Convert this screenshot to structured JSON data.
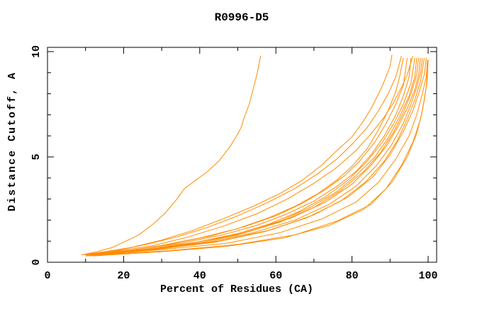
{
  "window": {
    "background": "#ffffff"
  },
  "chart_data": {
    "type": "line",
    "title": "R0996-D5",
    "xlabel": "Percent of Residues (CA)",
    "ylabel": "Distance Cutoff, A",
    "xlim": [
      0,
      102
    ],
    "ylim": [
      0,
      10.2
    ],
    "grid": false,
    "legend_position": "none",
    "series_color": "#ff8c00",
    "axis_color": "#000000",
    "xticks": {
      "major": [
        0,
        20,
        40,
        60,
        80,
        100
      ],
      "minor": [
        10,
        30,
        50,
        70,
        90
      ]
    },
    "yticks": {
      "major": [
        0,
        5,
        10
      ],
      "minor": [
        1,
        2,
        3,
        4,
        6,
        7,
        8,
        9
      ]
    },
    "series": [
      {
        "name": "curve-01",
        "points": [
          [
            9,
            0.35
          ],
          [
            13,
            0.5
          ],
          [
            17,
            0.7
          ],
          [
            20,
            0.95
          ],
          [
            24,
            1.3
          ],
          [
            28,
            1.85
          ],
          [
            31,
            2.35
          ],
          [
            34,
            3.0
          ],
          [
            36,
            3.5
          ],
          [
            39,
            3.9
          ],
          [
            42,
            4.3
          ],
          [
            45,
            4.8
          ],
          [
            48,
            5.5
          ],
          [
            50,
            6.1
          ],
          [
            51,
            6.45
          ],
          [
            51.5,
            6.8
          ],
          [
            53,
            7.5
          ],
          [
            54,
            8.2
          ],
          [
            55,
            8.9
          ],
          [
            56,
            9.8
          ]
        ]
      },
      {
        "name": "curve-02",
        "points": [
          [
            9,
            0.35
          ],
          [
            15,
            0.5
          ],
          [
            22,
            0.7
          ],
          [
            30,
            1.05
          ],
          [
            38,
            1.5
          ],
          [
            46,
            2.05
          ],
          [
            54,
            2.65
          ],
          [
            61,
            3.25
          ],
          [
            67,
            3.9
          ],
          [
            72,
            4.6
          ],
          [
            76,
            5.3
          ],
          [
            80,
            5.95
          ],
          [
            83,
            6.7
          ],
          [
            85,
            7.3
          ],
          [
            87,
            8.0
          ],
          [
            88.5,
            8.6
          ],
          [
            90,
            9.3
          ],
          [
            90.5,
            9.85
          ]
        ]
      },
      {
        "name": "curve-03",
        "points": [
          [
            10,
            0.35
          ],
          [
            18,
            0.55
          ],
          [
            26,
            0.85
          ],
          [
            34,
            1.2
          ],
          [
            42,
            1.65
          ],
          [
            50,
            2.2
          ],
          [
            58,
            2.85
          ],
          [
            65,
            3.5
          ],
          [
            71,
            4.2
          ],
          [
            76,
            4.9
          ],
          [
            80,
            5.6
          ],
          [
            84,
            6.4
          ],
          [
            87,
            7.2
          ],
          [
            89.5,
            8.0
          ],
          [
            91.5,
            8.8
          ],
          [
            93,
            9.8
          ]
        ]
      },
      {
        "name": "curve-04",
        "points": [
          [
            10,
            0.3
          ],
          [
            19,
            0.55
          ],
          [
            28,
            0.8
          ],
          [
            37,
            1.2
          ],
          [
            46,
            1.7
          ],
          [
            55,
            2.3
          ],
          [
            63,
            3.0
          ],
          [
            70,
            3.75
          ],
          [
            76,
            4.5
          ],
          [
            81,
            5.3
          ],
          [
            85,
            6.1
          ],
          [
            88.5,
            6.9
          ],
          [
            91,
            7.6
          ],
          [
            93,
            8.3
          ],
          [
            94.5,
            8.9
          ],
          [
            96,
            9.8
          ]
        ]
      },
      {
        "name": "curve-05",
        "points": [
          [
            10,
            0.3
          ],
          [
            20,
            0.5
          ],
          [
            30,
            0.8
          ],
          [
            40,
            1.15
          ],
          [
            50,
            1.6
          ],
          [
            58,
            2.1
          ],
          [
            65,
            2.65
          ],
          [
            71,
            3.25
          ],
          [
            76,
            3.9
          ],
          [
            80,
            4.55
          ],
          [
            84,
            5.4
          ],
          [
            87,
            6.3
          ],
          [
            89.5,
            7.2
          ],
          [
            91.5,
            8.1
          ],
          [
            92.5,
            8.8
          ],
          [
            93.5,
            9.7
          ]
        ]
      },
      {
        "name": "curve-06",
        "points": [
          [
            10,
            0.35
          ],
          [
            21,
            0.55
          ],
          [
            32,
            0.85
          ],
          [
            43,
            1.25
          ],
          [
            52,
            1.7
          ],
          [
            60,
            2.2
          ],
          [
            67,
            2.8
          ],
          [
            73,
            3.45
          ],
          [
            78,
            4.1
          ],
          [
            82,
            4.8
          ],
          [
            86,
            5.7
          ],
          [
            89,
            6.6
          ],
          [
            91.5,
            7.5
          ],
          [
            93.5,
            8.4
          ],
          [
            94.5,
            9.7
          ]
        ]
      },
      {
        "name": "curve-07",
        "points": [
          [
            11,
            0.35
          ],
          [
            23,
            0.6
          ],
          [
            35,
            0.9
          ],
          [
            46,
            1.3
          ],
          [
            55,
            1.75
          ],
          [
            63,
            2.3
          ],
          [
            70,
            2.9
          ],
          [
            76,
            3.6
          ],
          [
            81,
            4.3
          ],
          [
            85,
            5.1
          ],
          [
            88.5,
            6.0
          ],
          [
            91.5,
            7.0
          ],
          [
            93.5,
            7.9
          ],
          [
            95,
            8.8
          ],
          [
            95.5,
            9.7
          ]
        ]
      },
      {
        "name": "curve-08",
        "points": [
          [
            10,
            0.3
          ],
          [
            23,
            0.55
          ],
          [
            36,
            0.85
          ],
          [
            48,
            1.25
          ],
          [
            58,
            1.8
          ],
          [
            66,
            2.4
          ],
          [
            73,
            3.1
          ],
          [
            79,
            3.9
          ],
          [
            84,
            4.8
          ],
          [
            88,
            5.7
          ],
          [
            91,
            6.6
          ],
          [
            93.5,
            7.5
          ],
          [
            95.5,
            8.5
          ],
          [
            96.5,
            9.7
          ]
        ]
      },
      {
        "name": "curve-09",
        "points": [
          [
            11,
            0.35
          ],
          [
            25,
            0.6
          ],
          [
            39,
            0.95
          ],
          [
            51,
            1.4
          ],
          [
            61,
            1.95
          ],
          [
            69,
            2.6
          ],
          [
            76,
            3.35
          ],
          [
            81,
            4.1
          ],
          [
            86,
            5.0
          ],
          [
            89.5,
            5.9
          ],
          [
            92.5,
            6.9
          ],
          [
            95,
            7.9
          ],
          [
            96.5,
            8.8
          ],
          [
            97,
            9.7
          ]
        ]
      },
      {
        "name": "curve-10",
        "points": [
          [
            10,
            0.3
          ],
          [
            24,
            0.55
          ],
          [
            38,
            0.85
          ],
          [
            50,
            1.3
          ],
          [
            61,
            1.9
          ],
          [
            70,
            2.6
          ],
          [
            77,
            3.4
          ],
          [
            83,
            4.3
          ],
          [
            87.5,
            5.2
          ],
          [
            91,
            6.2
          ],
          [
            93.5,
            7.1
          ],
          [
            95.5,
            8.0
          ],
          [
            97,
            8.9
          ],
          [
            97.5,
            9.7
          ]
        ]
      },
      {
        "name": "curve-11",
        "points": [
          [
            11,
            0.35
          ],
          [
            26,
            0.6
          ],
          [
            41,
            0.95
          ],
          [
            53,
            1.45
          ],
          [
            64,
            2.1
          ],
          [
            73,
            2.85
          ],
          [
            80,
            3.7
          ],
          [
            85,
            4.6
          ],
          [
            89,
            5.5
          ],
          [
            92,
            6.4
          ],
          [
            94.5,
            7.3
          ],
          [
            96.5,
            8.2
          ],
          [
            97.5,
            8.9
          ],
          [
            98,
            9.7
          ]
        ]
      },
      {
        "name": "curve-12",
        "points": [
          [
            11,
            0.3
          ],
          [
            26,
            0.55
          ],
          [
            41,
            0.9
          ],
          [
            54,
            1.4
          ],
          [
            65,
            2.0
          ],
          [
            74,
            2.75
          ],
          [
            81,
            3.6
          ],
          [
            86.5,
            4.6
          ],
          [
            90.5,
            5.6
          ],
          [
            93.5,
            6.6
          ],
          [
            95.5,
            7.5
          ],
          [
            97,
            8.3
          ],
          [
            98,
            9.0
          ],
          [
            98.5,
            9.7
          ]
        ]
      },
      {
        "name": "curve-13",
        "points": [
          [
            12,
            0.35
          ],
          [
            28,
            0.6
          ],
          [
            44,
            0.95
          ],
          [
            57,
            1.45
          ],
          [
            68,
            2.1
          ],
          [
            77,
            2.9
          ],
          [
            83.5,
            3.8
          ],
          [
            88.5,
            4.8
          ],
          [
            92,
            5.8
          ],
          [
            94.5,
            6.8
          ],
          [
            96.5,
            7.7
          ],
          [
            98,
            8.6
          ],
          [
            99,
            9.7
          ]
        ]
      },
      {
        "name": "curve-14",
        "points": [
          [
            12,
            0.4
          ],
          [
            29,
            0.65
          ],
          [
            45,
            1.0
          ],
          [
            59,
            1.55
          ],
          [
            70,
            2.25
          ],
          [
            79,
            3.1
          ],
          [
            85.5,
            4.05
          ],
          [
            90,
            5.1
          ],
          [
            93.5,
            6.2
          ],
          [
            96,
            7.2
          ],
          [
            97.5,
            8.0
          ],
          [
            99,
            8.9
          ],
          [
            99.5,
            9.7
          ]
        ]
      },
      {
        "name": "curve-15",
        "points": [
          [
            12,
            0.35
          ],
          [
            30,
            0.6
          ],
          [
            47,
            0.9
          ],
          [
            61,
            1.4
          ],
          [
            72,
            2.05
          ],
          [
            81,
            2.85
          ],
          [
            87,
            3.8
          ],
          [
            91.5,
            4.9
          ],
          [
            95,
            6.0
          ],
          [
            97,
            7.0
          ],
          [
            98.5,
            8.0
          ],
          [
            99.5,
            8.8
          ],
          [
            99.8,
            9.6
          ]
        ]
      },
      {
        "name": "curve-16",
        "points": [
          [
            12,
            0.3
          ],
          [
            30,
            0.5
          ],
          [
            47,
            0.75
          ],
          [
            62,
            1.15
          ],
          [
            74,
            1.75
          ],
          [
            83,
            2.5
          ],
          [
            89,
            3.5
          ],
          [
            93,
            4.6
          ],
          [
            96,
            5.7
          ],
          [
            98,
            6.8
          ],
          [
            99,
            7.7
          ],
          [
            99.8,
            8.7
          ],
          [
            100,
            9.6
          ]
        ]
      },
      {
        "name": "curve-17",
        "points": [
          [
            13,
            0.35
          ],
          [
            32,
            0.55
          ],
          [
            50,
            0.85
          ],
          [
            65,
            1.3
          ],
          [
            76,
            1.95
          ],
          [
            85,
            2.75
          ],
          [
            90.5,
            3.8
          ],
          [
            94.5,
            5.0
          ],
          [
            97,
            6.1
          ],
          [
            98.5,
            7.2
          ],
          [
            99.5,
            8.3
          ],
          [
            100,
            9.5
          ]
        ]
      }
    ]
  }
}
